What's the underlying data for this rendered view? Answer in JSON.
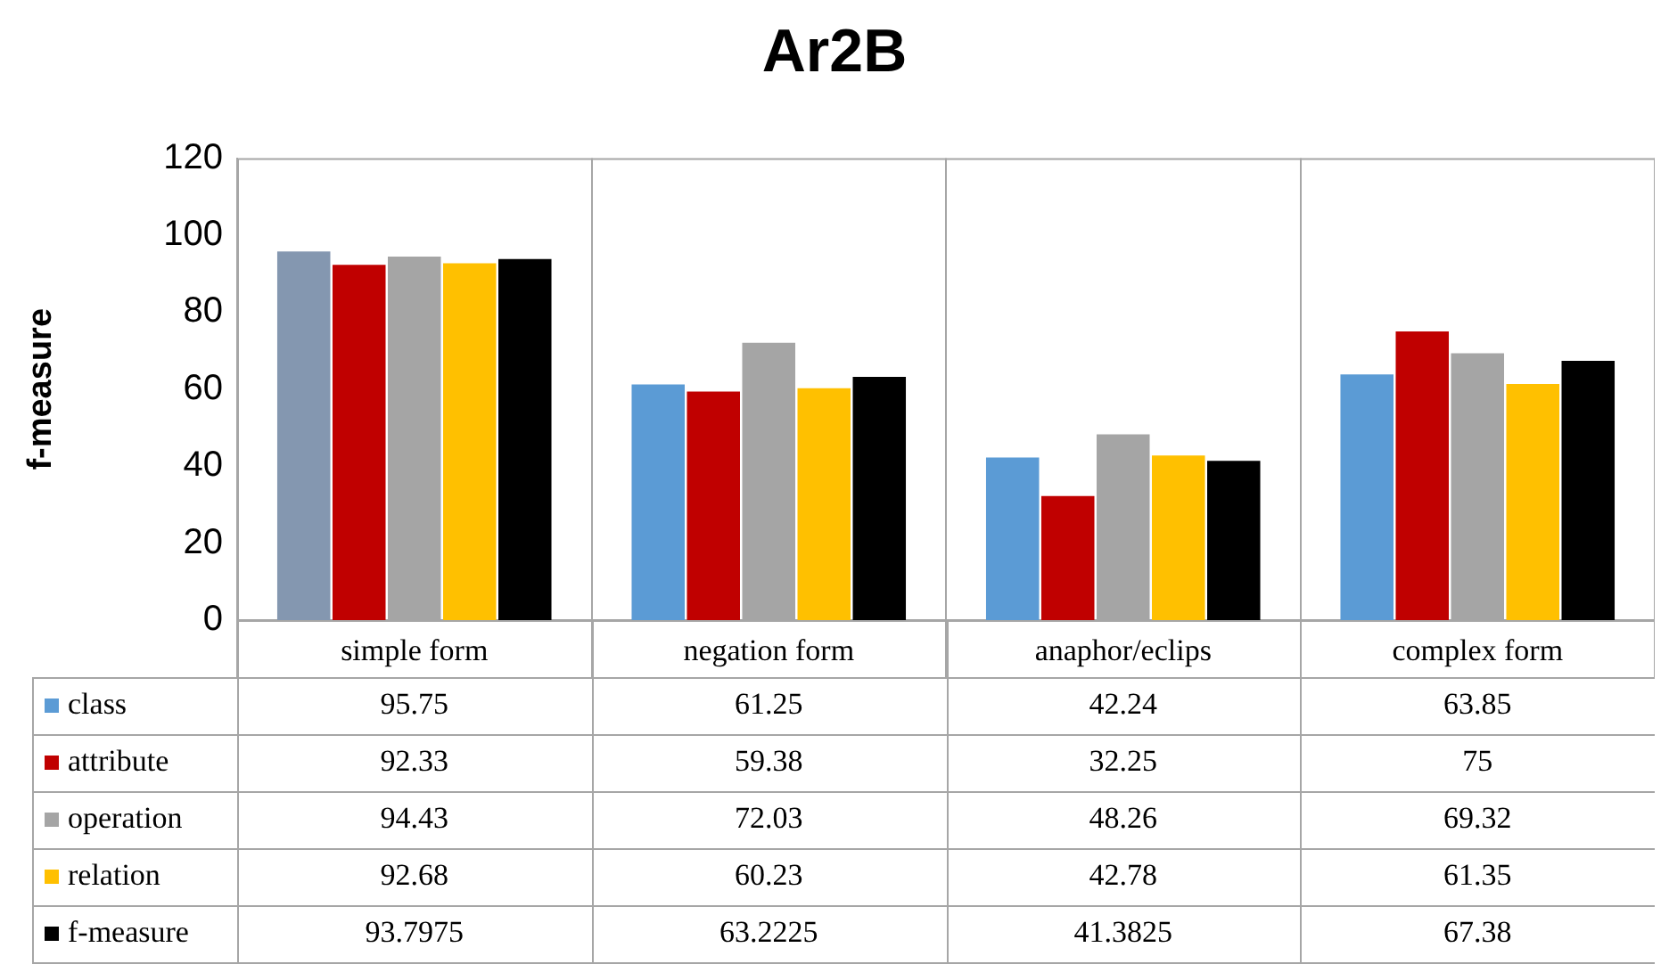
{
  "chart_data": {
    "type": "bar",
    "title": "Ar2B",
    "ylabel": "f-measure",
    "categories": [
      "simple form",
      "negation form",
      "anaphor/eclips",
      "complex form"
    ],
    "series": [
      {
        "name": "class",
        "color": "#5b9bd5",
        "colors": [
          "#8497b0",
          "#5b9bd5",
          "#5b9bd5",
          "#5b9bd5"
        ],
        "values": [
          95.75,
          61.25,
          42.24,
          63.85
        ]
      },
      {
        "name": "attribute",
        "color": "#c00000",
        "values": [
          92.33,
          59.38,
          32.25,
          75
        ]
      },
      {
        "name": "operation",
        "color": "#a5a5a5",
        "values": [
          94.43,
          72.03,
          48.26,
          69.32
        ]
      },
      {
        "name": "relation",
        "color": "#ffc000",
        "values": [
          92.68,
          60.23,
          42.78,
          61.35
        ]
      },
      {
        "name": "f-measure",
        "color": "#000000",
        "values": [
          93.7975,
          63.2225,
          41.3825,
          67.38
        ]
      }
    ],
    "ylim": [
      0,
      120
    ],
    "yticks": [
      0,
      20,
      40,
      60,
      80,
      100,
      120
    ],
    "grid": "x",
    "data_labels": true,
    "legend": "bottom left"
  }
}
